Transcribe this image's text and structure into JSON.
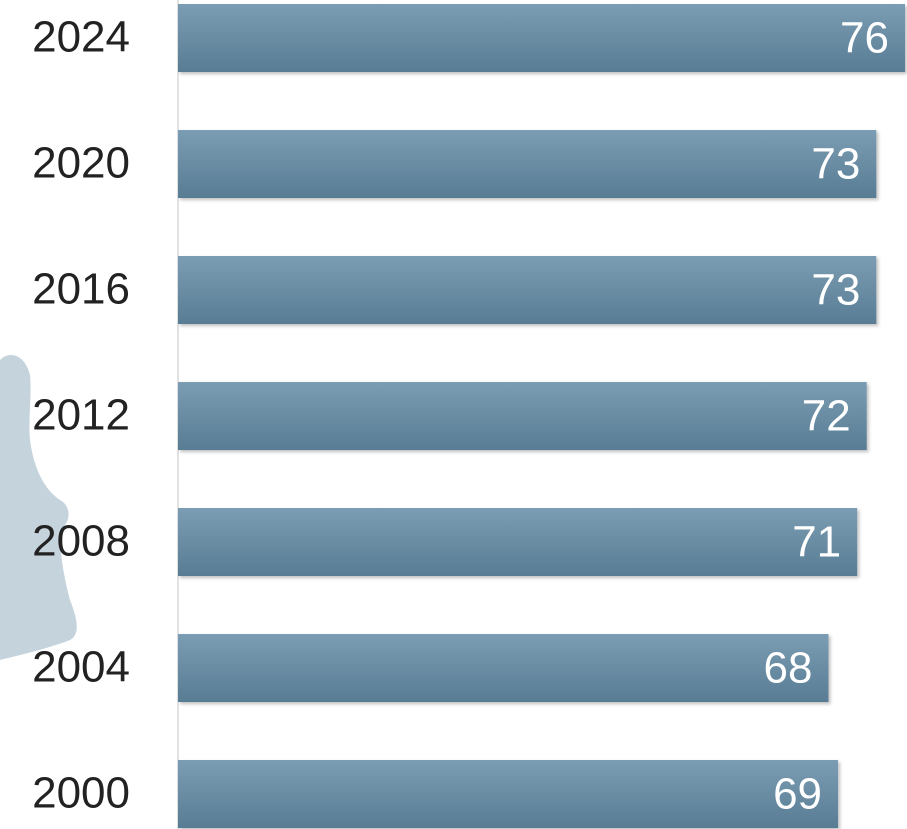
{
  "chart_data": {
    "type": "bar",
    "orientation": "horizontal",
    "categories": [
      "2024",
      "2020",
      "2016",
      "2012",
      "2008",
      "2004",
      "2000"
    ],
    "values": [
      76,
      73,
      73,
      72,
      71,
      68,
      69
    ],
    "color": "#6a8ea6",
    "xlim": [
      0,
      76
    ]
  }
}
